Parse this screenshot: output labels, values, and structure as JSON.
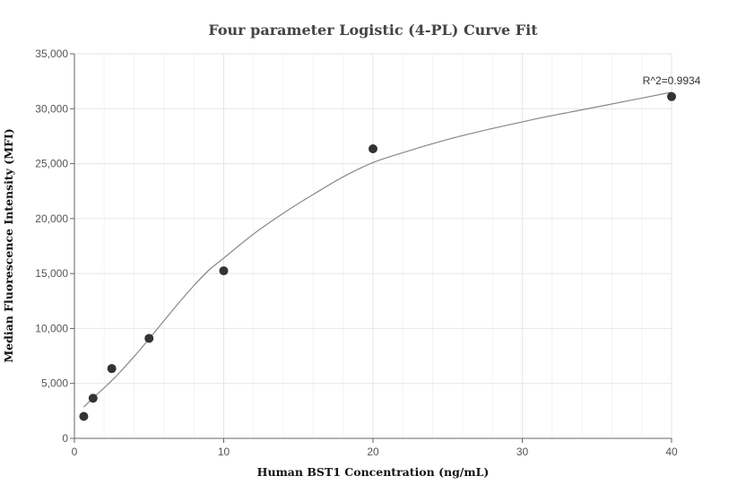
{
  "chart_data": {
    "type": "scatter",
    "title": "Four parameter Logistic (4-PL) Curve Fit",
    "xlabel": "Human BST1 Concentration (ng/mL)",
    "ylabel": "Median Fluorescence Intensity (MFI)",
    "xlim": [
      0,
      40
    ],
    "ylim": [
      0,
      35000
    ],
    "x_ticks": [
      0,
      10,
      20,
      30,
      40
    ],
    "x_tick_labels": [
      "0",
      "10",
      "20",
      "30",
      "40"
    ],
    "y_ticks": [
      0,
      5000,
      10000,
      15000,
      20000,
      25000,
      30000,
      35000
    ],
    "y_tick_labels": [
      "0",
      "5,000",
      "10,000",
      "15,000",
      "20,000",
      "25,000",
      "30,000",
      "35,000"
    ],
    "grid": true,
    "points": {
      "x": [
        0.625,
        1.25,
        2.5,
        5,
        10,
        20,
        40
      ],
      "y": [
        2000,
        3650,
        6350,
        9100,
        15250,
        26350,
        31100
      ]
    },
    "fit_curve": {
      "x": [
        0.625,
        1,
        1.5,
        2,
        2.5,
        3,
        4,
        5,
        6,
        7,
        8,
        9,
        10,
        12,
        14,
        16,
        18,
        20,
        22,
        25,
        28,
        31,
        34,
        37,
        40
      ],
      "y": [
        2850,
        3350,
        4000,
        4600,
        5250,
        5950,
        7450,
        9050,
        10700,
        12350,
        13900,
        15300,
        16400,
        18600,
        20500,
        22200,
        23800,
        25100,
        26000,
        27200,
        28200,
        29100,
        29900,
        30700,
        31500
      ]
    },
    "annotation": "R^2=0.9934",
    "colors": {
      "points": "#333333",
      "curve": "#888888",
      "grid": "#e6e6e6",
      "axis": "#666666"
    }
  }
}
